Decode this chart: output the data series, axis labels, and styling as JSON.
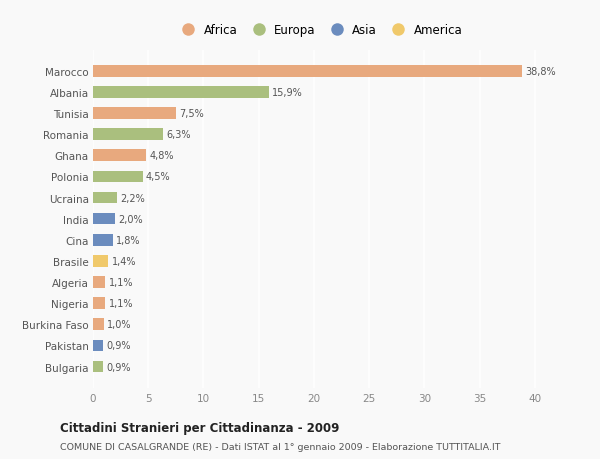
{
  "countries": [
    "Marocco",
    "Albania",
    "Tunisia",
    "Romania",
    "Ghana",
    "Polonia",
    "Ucraina",
    "India",
    "Cina",
    "Brasile",
    "Algeria",
    "Nigeria",
    "Burkina Faso",
    "Pakistan",
    "Bulgaria"
  ],
  "values": [
    38.8,
    15.9,
    7.5,
    6.3,
    4.8,
    4.5,
    2.2,
    2.0,
    1.8,
    1.4,
    1.1,
    1.1,
    1.0,
    0.9,
    0.9
  ],
  "labels": [
    "38,8%",
    "15,9%",
    "7,5%",
    "6,3%",
    "4,8%",
    "4,5%",
    "2,2%",
    "2,0%",
    "1,8%",
    "1,4%",
    "1,1%",
    "1,1%",
    "1,0%",
    "0,9%",
    "0,9%"
  ],
  "continents": [
    "Africa",
    "Europa",
    "Africa",
    "Europa",
    "Africa",
    "Europa",
    "Europa",
    "Asia",
    "Asia",
    "America",
    "Africa",
    "Africa",
    "Africa",
    "Asia",
    "Europa"
  ],
  "colors": {
    "Africa": "#E8A97E",
    "Europa": "#AABF7E",
    "Asia": "#6B8CBE",
    "America": "#F0C96B"
  },
  "legend_order": [
    "Africa",
    "Europa",
    "Asia",
    "America"
  ],
  "xlim": [
    0,
    41
  ],
  "xticks": [
    0,
    5,
    10,
    15,
    20,
    25,
    30,
    35,
    40
  ],
  "title": "Cittadini Stranieri per Cittadinanza - 2009",
  "subtitle": "COMUNE DI CASALGRANDE (RE) - Dati ISTAT al 1° gennaio 2009 - Elaborazione TUTTITALIA.IT",
  "background_color": "#f9f9f9",
  "bar_height": 0.55,
  "figsize": [
    6.0,
    4.6
  ],
  "dpi": 100
}
